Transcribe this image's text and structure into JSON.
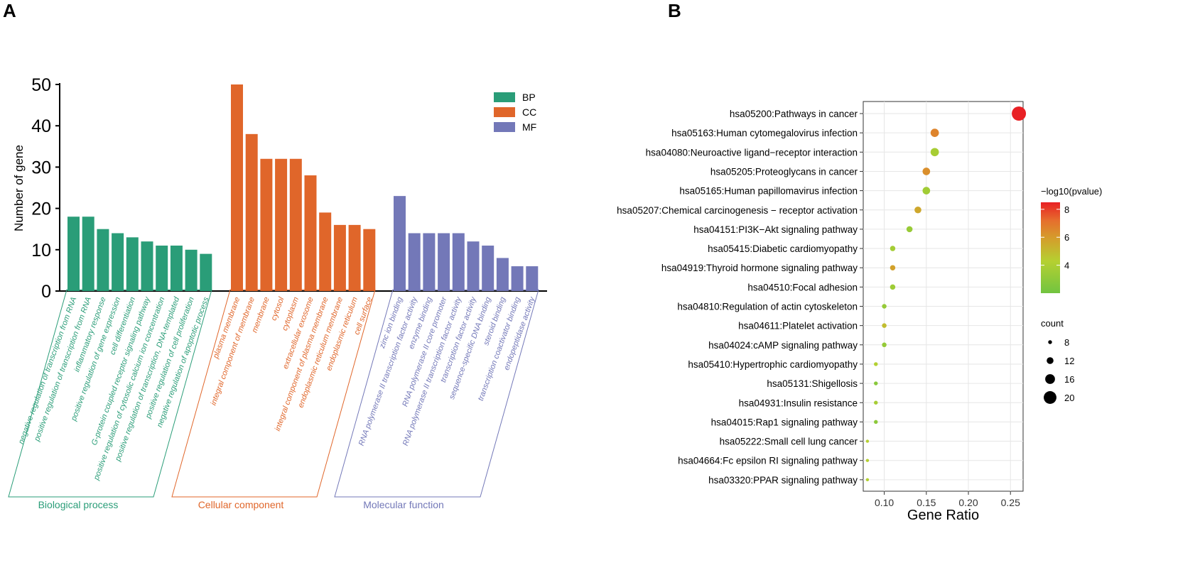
{
  "panel_a": {
    "letter": "A"
  },
  "panel_b": {
    "letter": "B"
  },
  "colors": {
    "BP": "#2a9d78",
    "CC": "#e0662a",
    "MF": "#7378b8",
    "grid": "#e6e6e6",
    "axis": "#000000"
  },
  "chart_data": [
    {
      "type": "bar",
      "panel": "A",
      "title": "",
      "xlabel": "",
      "ylabel": "Number of gene",
      "ylim": [
        0,
        50
      ],
      "yticks": [
        0,
        10,
        20,
        30,
        40,
        50
      ],
      "legend": {
        "placement": "top-right",
        "entries": [
          "BP",
          "CC",
          "MF"
        ]
      },
      "groups": [
        {
          "key": "BP",
          "name": "Biological process",
          "categories": [
            "negative regulation of transcription from RNA",
            "positive regulation of transcription from RNA",
            "inflammatory response",
            "positive regulation of gene expression",
            "cell differentiation",
            "G-protein coupled receptor signaling pathway",
            "positive regulation of cytosolic calcium ion concentration",
            "positive regulation of transcription, DNA-templated",
            "positive regulation of cell proliferation",
            "negative regulation of apoptotic process"
          ],
          "values": [
            18,
            18,
            15,
            14,
            13,
            12,
            11,
            11,
            10,
            9
          ]
        },
        {
          "key": "CC",
          "name": "Cellular component",
          "categories": [
            "plasma membrane",
            "integral component of membrane",
            "membrane",
            "cytosol",
            "cytoplasm",
            "extracellular exosome",
            "integral component of plasma membrane",
            "endoplasmic reticulum membrane",
            "endoplasmic reticulum",
            "cell surface"
          ],
          "values": [
            50,
            38,
            32,
            32,
            32,
            28,
            19,
            16,
            16,
            15
          ]
        },
        {
          "key": "MF",
          "name": "Molecular function",
          "categories": [
            "zinc ion binding",
            "RNA polymerase II transcription factor activity",
            "enzyme binding",
            "RNA polymerase II core promoter",
            "RNA polymerase II transcription factor activity",
            "transcription factor activity",
            "sequence-specific DNA binding",
            "steroid binding",
            "transcription coactivator binding",
            "endopeptidase activity"
          ],
          "values": [
            23,
            14,
            14,
            14,
            14,
            12,
            11,
            8,
            6,
            6
          ]
        }
      ]
    },
    {
      "type": "scatter",
      "panel": "B",
      "title": "",
      "xlabel": "Gene Ratio",
      "ylabel": "",
      "xlim": [
        0.075,
        0.265
      ],
      "xticks": [
        0.1,
        0.15,
        0.2,
        0.25
      ],
      "xtick_labels": [
        "0.10",
        "0.15",
        "0.20",
        "0.25"
      ],
      "grid": true,
      "color_legend": {
        "title": "−log10(pvalue)",
        "range": [
          2,
          8.5
        ],
        "ticks": [
          4,
          6,
          8
        ],
        "tick_labels": [
          "4",
          "6",
          "8"
        ]
      },
      "size_legend": {
        "title": "count",
        "values": [
          8,
          12,
          16,
          20
        ],
        "labels": [
          "8",
          "12",
          "16",
          "20"
        ]
      },
      "terms": [
        "hsa05200:Pathways in cancer",
        "hsa05163:Human cytomegalovirus infection",
        "hsa04080:Neuroactive ligand−receptor interaction",
        "hsa05205:Proteoglycans in cancer",
        "hsa05165:Human papillomavirus infection",
        "hsa05207:Chemical carcinogenesis − receptor activation",
        "hsa04151:PI3K−Akt signaling pathway",
        "hsa05415:Diabetic cardiomyopathy",
        "hsa04919:Thyroid hormone signaling pathway",
        "hsa04510:Focal adhesion",
        "hsa04810:Regulation of actin cytoskeleton",
        "hsa04611:Platelet activation",
        "hsa04024:cAMP signaling pathway",
        "hsa05410:Hypertrophic cardiomyopathy",
        "hsa05131:Shigellosis",
        "hsa04931:Insulin resistance",
        "hsa04015:Rap1 signaling pathway",
        "hsa05222:Small cell lung cancer",
        "hsa04664:Fc epsilon RI signaling pathway",
        "hsa03320:PPAR signaling pathway"
      ],
      "gene_ratio": [
        0.26,
        0.16,
        0.16,
        0.15,
        0.15,
        0.14,
        0.13,
        0.11,
        0.11,
        0.11,
        0.1,
        0.1,
        0.1,
        0.09,
        0.09,
        0.09,
        0.09,
        0.08,
        0.08,
        0.08
      ],
      "count": [
        22,
        14,
        14,
        13,
        13,
        12,
        11,
        10,
        10,
        10,
        9,
        9,
        9,
        8,
        8,
        8,
        8,
        7,
        7,
        7
      ],
      "neg_log10_pvalue": [
        8.5,
        6.6,
        3.8,
        6.3,
        3.6,
        5.6,
        3.3,
        3.7,
        5.8,
        3.5,
        3.2,
        4.9,
        3.2,
        4.2,
        2.8,
        3.8,
        2.9,
        4.3,
        4.3,
        4.2
      ]
    }
  ]
}
